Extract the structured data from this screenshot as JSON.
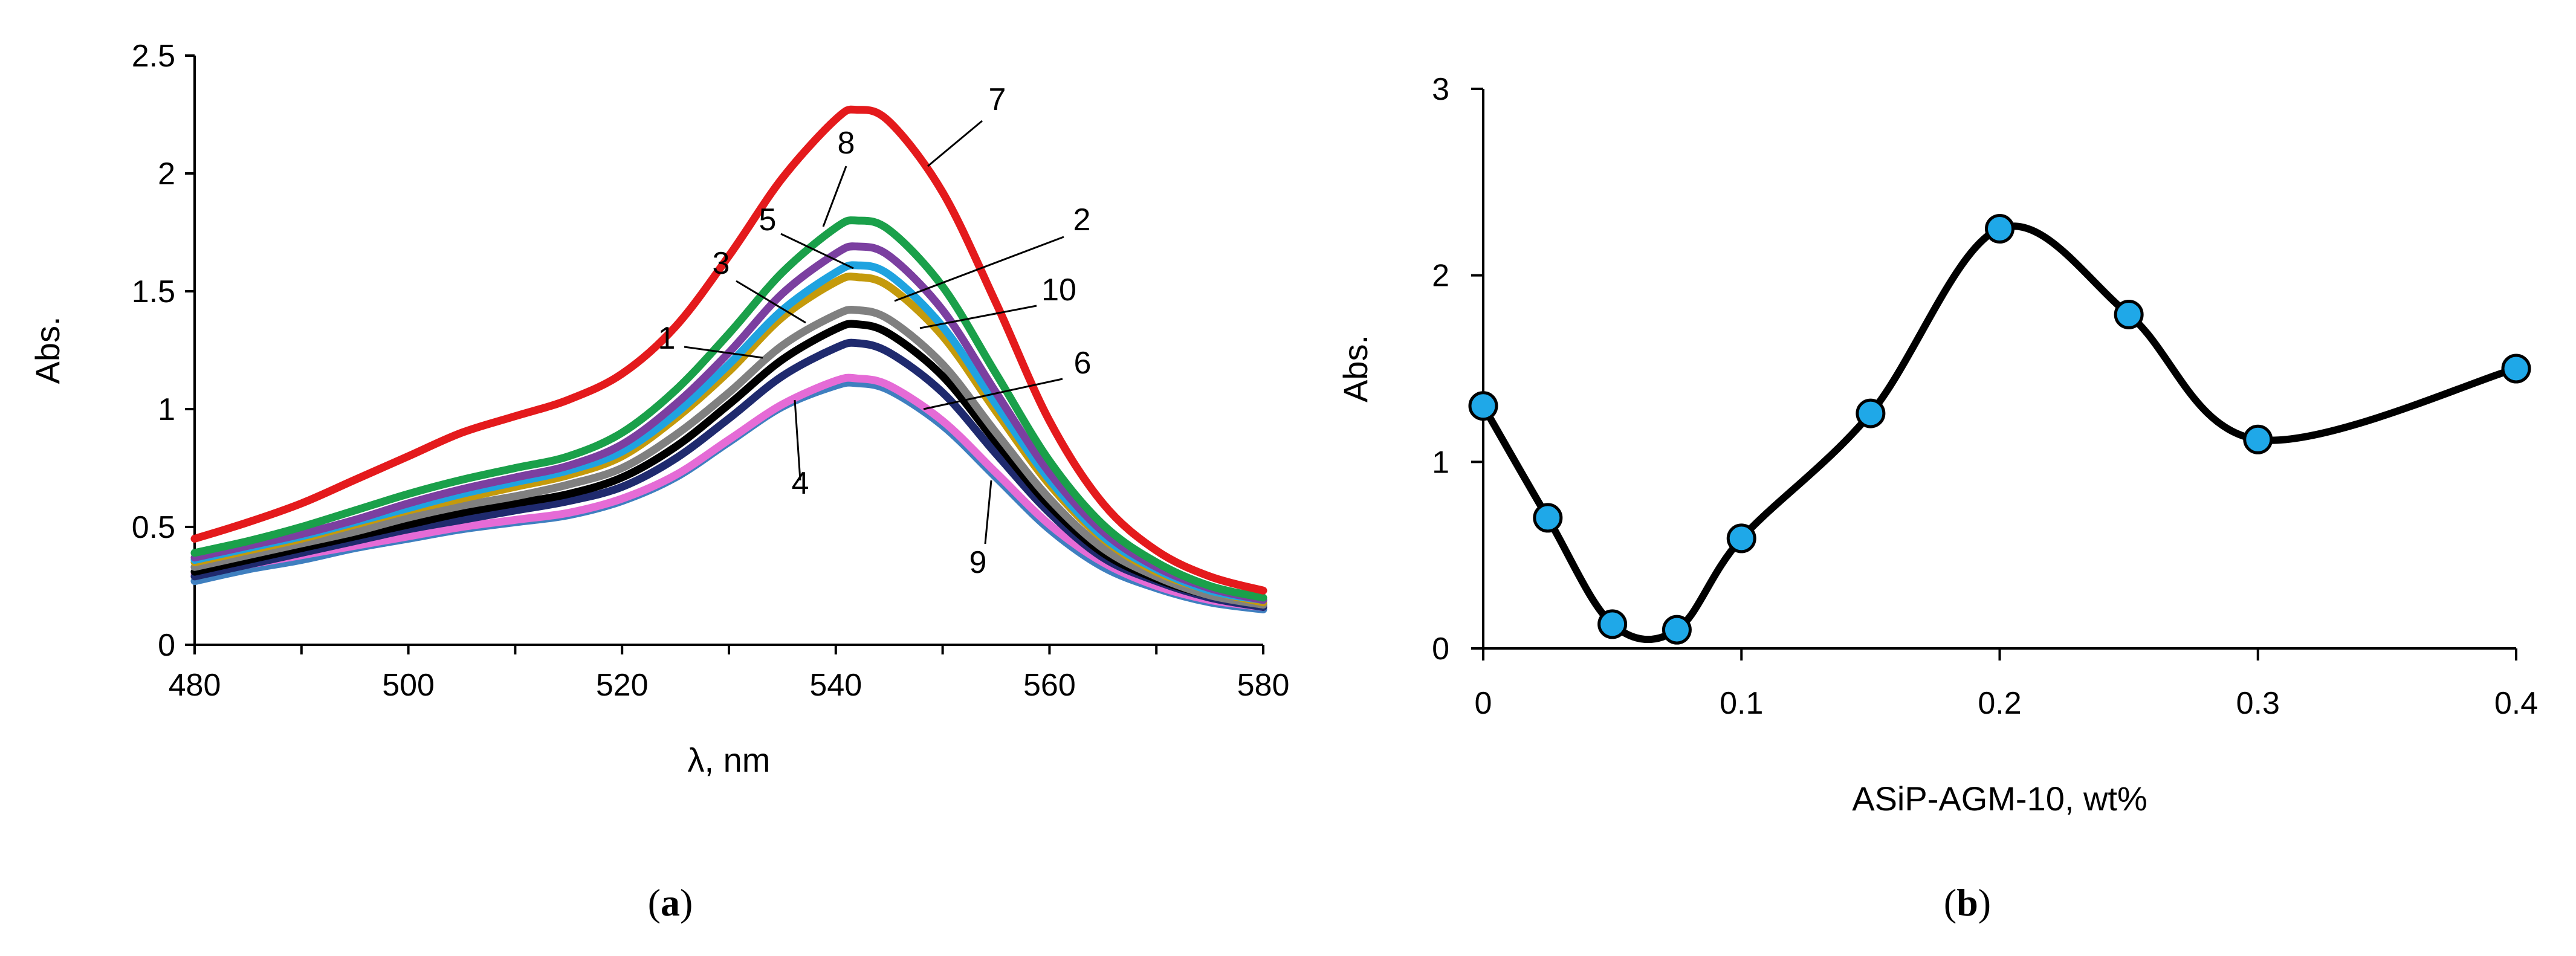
{
  "chart_data": [
    {
      "id": "a",
      "type": "line",
      "panel_label": "a",
      "xlabel": "λ, nm",
      "ylabel": "Abs.",
      "xlim": [
        480,
        580
      ],
      "ylim": [
        0,
        2.5
      ],
      "xticks": [
        480,
        500,
        520,
        540,
        560,
        580
      ],
      "yticks": [
        0,
        0.5,
        1,
        1.5,
        2,
        2.5
      ],
      "x": [
        480,
        485,
        490,
        495,
        500,
        505,
        510,
        515,
        520,
        525,
        530,
        535,
        540,
        542,
        545,
        550,
        555,
        560,
        565,
        570,
        575,
        580
      ],
      "series": [
        {
          "label": "7",
          "color": "#e41a1c",
          "values": [
            0.45,
            0.52,
            0.6,
            0.7,
            0.8,
            0.9,
            0.97,
            1.04,
            1.15,
            1.35,
            1.65,
            1.98,
            2.23,
            2.27,
            2.22,
            1.92,
            1.45,
            0.95,
            0.6,
            0.4,
            0.29,
            0.23
          ]
        },
        {
          "label": "8",
          "color": "#1aa04a",
          "values": [
            0.39,
            0.44,
            0.5,
            0.57,
            0.64,
            0.7,
            0.75,
            0.8,
            0.9,
            1.08,
            1.32,
            1.58,
            1.77,
            1.8,
            1.76,
            1.52,
            1.15,
            0.78,
            0.51,
            0.35,
            0.25,
            0.2
          ]
        },
        {
          "label": "5",
          "color": "#7b3fa0",
          "values": [
            0.37,
            0.42,
            0.47,
            0.53,
            0.6,
            0.66,
            0.71,
            0.76,
            0.85,
            1.02,
            1.24,
            1.49,
            1.66,
            1.69,
            1.65,
            1.42,
            1.07,
            0.73,
            0.48,
            0.33,
            0.24,
            0.19
          ]
        },
        {
          "label": "2",
          "color": "#1fa3e0",
          "values": [
            0.36,
            0.41,
            0.46,
            0.52,
            0.58,
            0.64,
            0.69,
            0.74,
            0.82,
            0.98,
            1.19,
            1.42,
            1.58,
            1.61,
            1.57,
            1.35,
            1.02,
            0.7,
            0.46,
            0.32,
            0.23,
            0.19
          ]
        },
        {
          "label": "10",
          "color": "#c49a0c",
          "values": [
            0.35,
            0.4,
            0.45,
            0.51,
            0.57,
            0.62,
            0.67,
            0.72,
            0.8,
            0.96,
            1.16,
            1.39,
            1.54,
            1.56,
            1.52,
            1.31,
            0.99,
            0.68,
            0.45,
            0.31,
            0.23,
            0.18
          ]
        },
        {
          "label": "3",
          "color": "#808080",
          "values": [
            0.33,
            0.38,
            0.43,
            0.48,
            0.54,
            0.59,
            0.63,
            0.68,
            0.75,
            0.89,
            1.07,
            1.27,
            1.4,
            1.42,
            1.38,
            1.19,
            0.9,
            0.62,
            0.41,
            0.29,
            0.21,
            0.17
          ]
        },
        {
          "label": "1",
          "color": "#000000",
          "values": [
            0.31,
            0.36,
            0.41,
            0.46,
            0.51,
            0.56,
            0.6,
            0.64,
            0.71,
            0.84,
            1.02,
            1.21,
            1.34,
            1.36,
            1.32,
            1.14,
            0.86,
            0.59,
            0.39,
            0.28,
            0.21,
            0.17
          ]
        },
        {
          "label": "6",
          "color": "#1f2a6e",
          "values": [
            0.29,
            0.34,
            0.39,
            0.44,
            0.49,
            0.53,
            0.57,
            0.61,
            0.67,
            0.79,
            0.96,
            1.14,
            1.26,
            1.28,
            1.24,
            1.07,
            0.81,
            0.56,
            0.37,
            0.27,
            0.2,
            0.16
          ]
        },
        {
          "label": "4",
          "color": "#e56bd6",
          "values": [
            0.3,
            0.34,
            0.38,
            0.42,
            0.46,
            0.5,
            0.53,
            0.56,
            0.62,
            0.72,
            0.87,
            1.02,
            1.12,
            1.13,
            1.1,
            0.95,
            0.73,
            0.51,
            0.35,
            0.25,
            0.19,
            0.16
          ]
        },
        {
          "label": "9",
          "color": "#3f7fbf",
          "values": [
            0.27,
            0.32,
            0.36,
            0.41,
            0.45,
            0.49,
            0.52,
            0.55,
            0.61,
            0.71,
            0.86,
            1.01,
            1.1,
            1.11,
            1.08,
            0.93,
            0.71,
            0.49,
            0.33,
            0.24,
            0.18,
            0.15
          ]
        }
      ]
    },
    {
      "id": "b",
      "type": "scatter",
      "panel_label": "b",
      "xlabel": "ASiP-AGM-10, wt%",
      "ylabel": "Abs.",
      "xlim": [
        0,
        0.4
      ],
      "ylim": [
        0,
        3
      ],
      "xticks": [
        0,
        0.1,
        0.2,
        0.3,
        0.4
      ],
      "yticks": [
        0,
        1,
        2,
        3
      ],
      "smooth_line": true,
      "line_color": "#000000",
      "marker_color": "#1fa8e8",
      "x": [
        0,
        0.025,
        0.05,
        0.075,
        0.1,
        0.15,
        0.2,
        0.25,
        0.3,
        0.4
      ],
      "values": [
        1.3,
        0.7,
        0.13,
        0.1,
        0.59,
        1.26,
        2.25,
        1.79,
        1.12,
        1.5
      ]
    }
  ]
}
